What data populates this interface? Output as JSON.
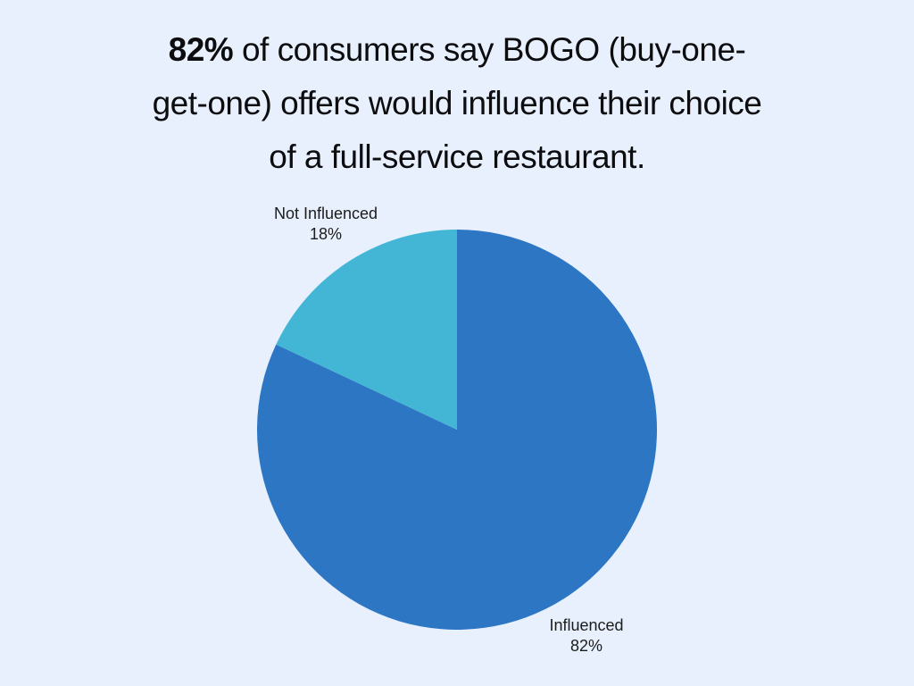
{
  "page": {
    "background_color": "#e7f0fc",
    "title_color": "#0d0d10",
    "label_color": "#1c1c1c"
  },
  "title": {
    "bold": "82%",
    "rest": " of consumers say BOGO (buy-one-get-one) offers would influence their choice of a full-service restaurant."
  },
  "chart_data": {
    "type": "pie",
    "title": "82% of consumers say BOGO (buy-one-get-one) offers would influence their choice of a full-service restaurant.",
    "labels": [
      "Influenced",
      "Not Influenced"
    ],
    "values": [
      82,
      18
    ],
    "value_labels": [
      "82%",
      "18%"
    ],
    "colors": [
      "#2d76c4",
      "#44b6d5"
    ],
    "start_angle_deg": 0,
    "direction": "clockwise",
    "legend_position": "none",
    "label_position": "outside"
  }
}
